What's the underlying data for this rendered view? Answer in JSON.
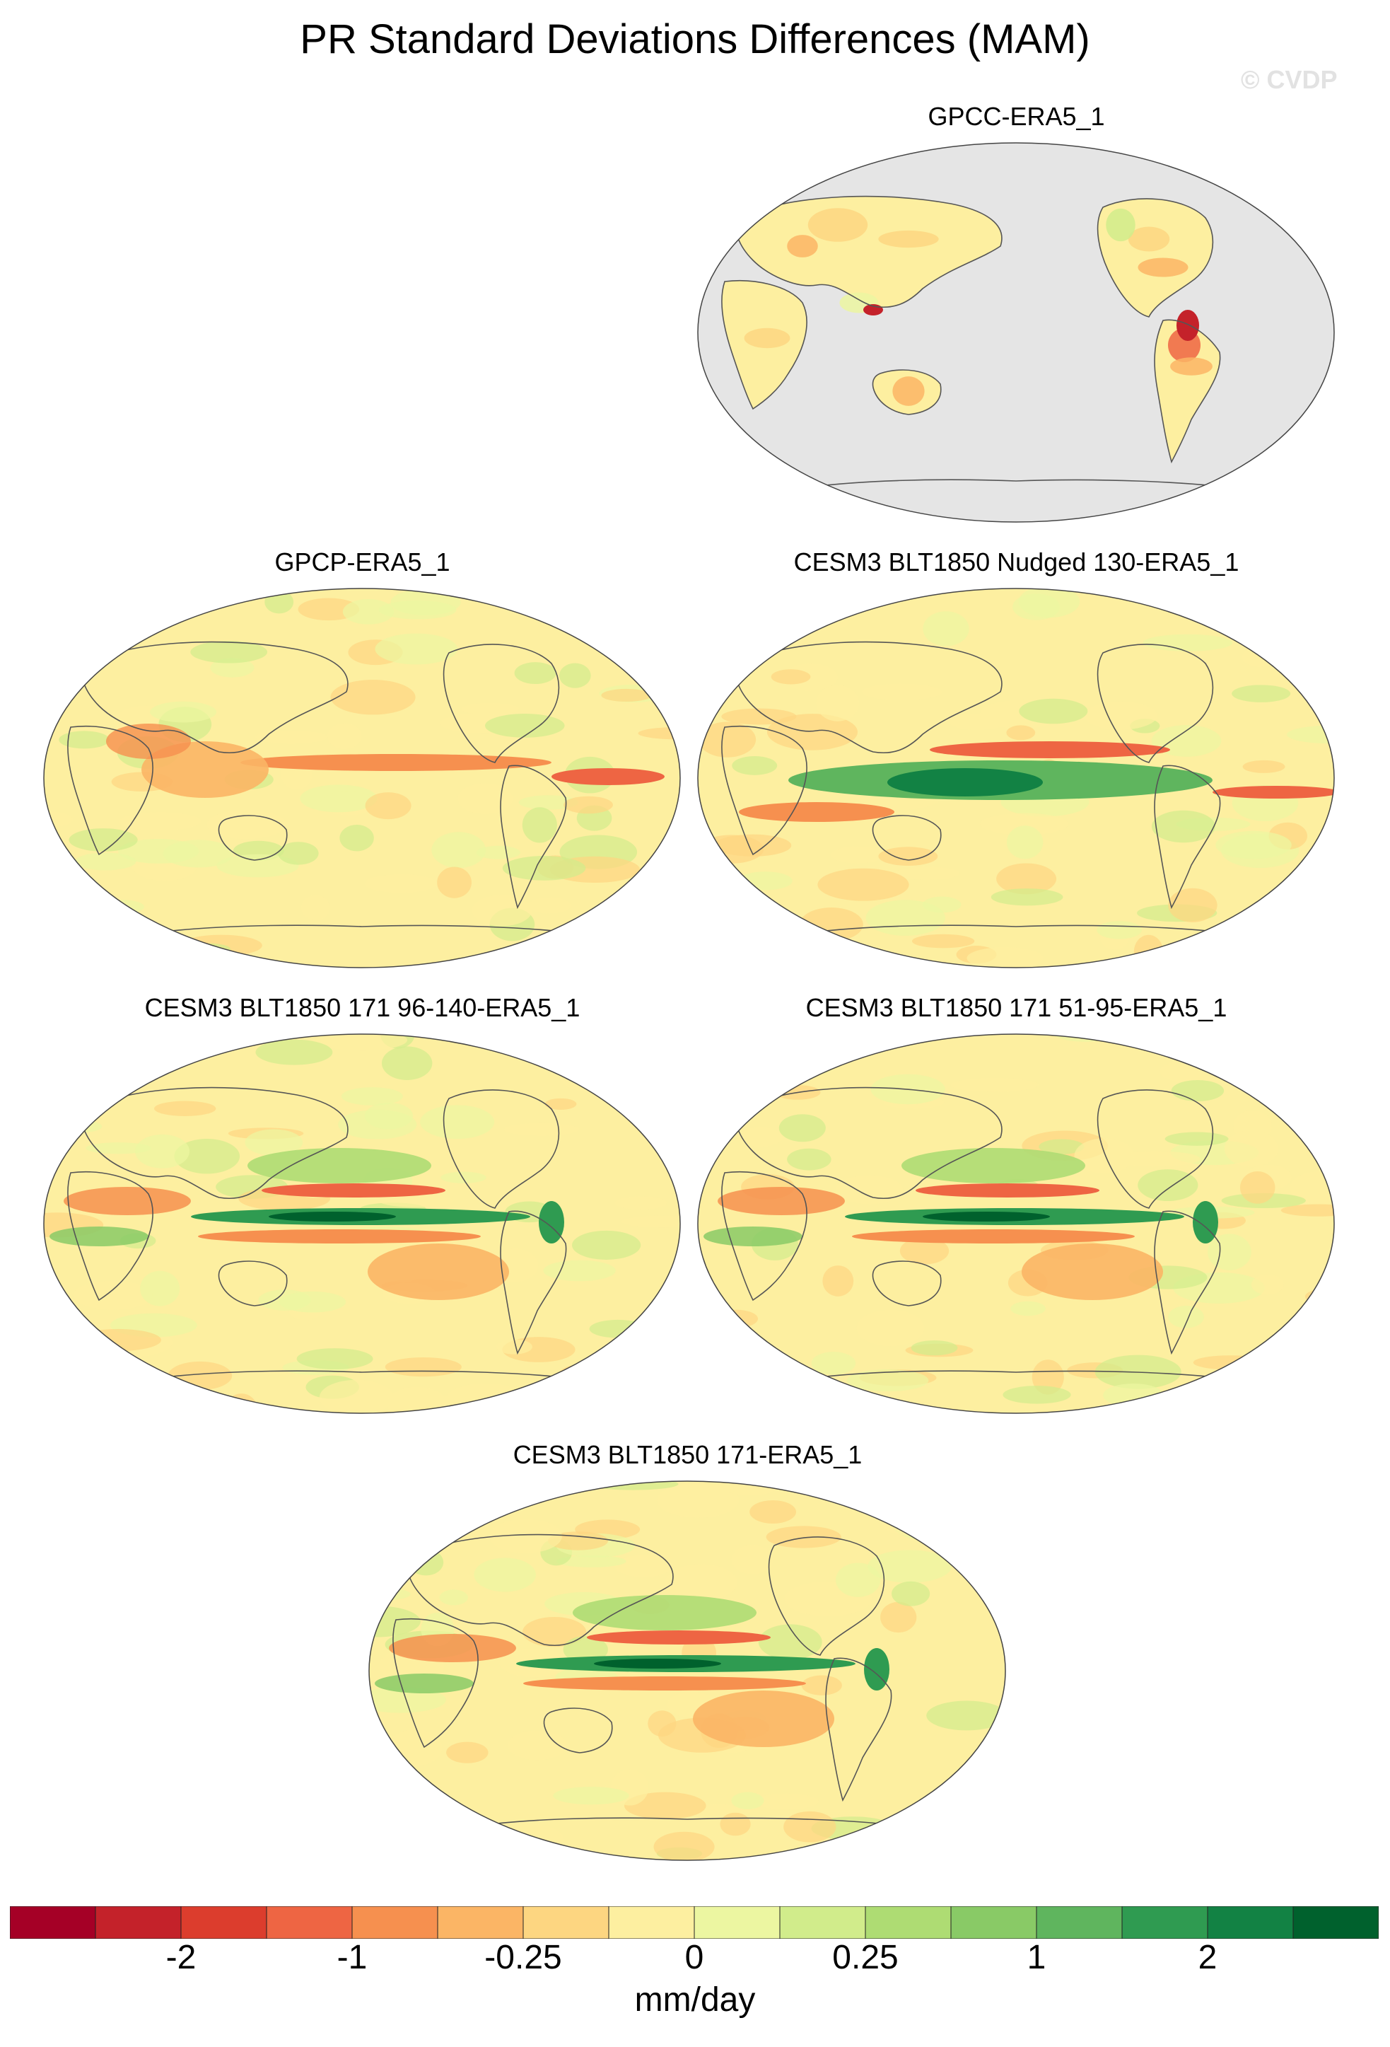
{
  "chart_data": {
    "type": "map",
    "title": "PR Standard Deviations Differences (MAM)",
    "watermark": "© CVDP",
    "projection": "Robinson",
    "panels": [
      {
        "title": "GPCC-ERA5_1",
        "field": "land_only",
        "background": "#e5e5e5",
        "pattern": "mostly small negative (orange) over land; strong negative in Amazon and Maritime Continent"
      },
      {
        "title": "GPCP-ERA5_1",
        "field": "global",
        "pattern": "negative band along tropical Pacific and Atlantic ITCZ; weak elsewhere"
      },
      {
        "title": "CESM3 BLT1850 Nudged 130-ERA5_1",
        "field": "global",
        "pattern": "strong positive (green) in equatorial Indian/western Pacific, negative north of equator"
      },
      {
        "title": "CESM3 BLT1850 171 96-140-ERA5_1",
        "field": "global",
        "pattern": "double-ITCZ dipole: positive equatorial Pacific band, negative bands flanking"
      },
      {
        "title": "CESM3 BLT1850 171 51-95-ERA5_1",
        "field": "global",
        "pattern": "double-ITCZ dipole similar to 96-140"
      },
      {
        "title": "CESM3 BLT1850 171-ERA5_1",
        "field": "global",
        "pattern": "double-ITCZ dipole, positive equatorial Pacific and Atlantic"
      }
    ],
    "colorbar": {
      "colors": [
        "#a50026",
        "#c4222a",
        "#dc3d2d",
        "#ee6543",
        "#f6904f",
        "#fbb565",
        "#fdd681",
        "#fdefa0",
        "#ecf6a1",
        "#d1ec8b",
        "#aedc73",
        "#89ca66",
        "#5fb55e",
        "#2f9b51",
        "#128244",
        "#00612d"
      ],
      "tick_labels": [
        "-2",
        "-1",
        "-0.25",
        "0",
        "0.25",
        "1",
        "2"
      ],
      "tick_boundaries": [
        2,
        4,
        6,
        8,
        10,
        12,
        14
      ],
      "units": "mm/day"
    }
  }
}
